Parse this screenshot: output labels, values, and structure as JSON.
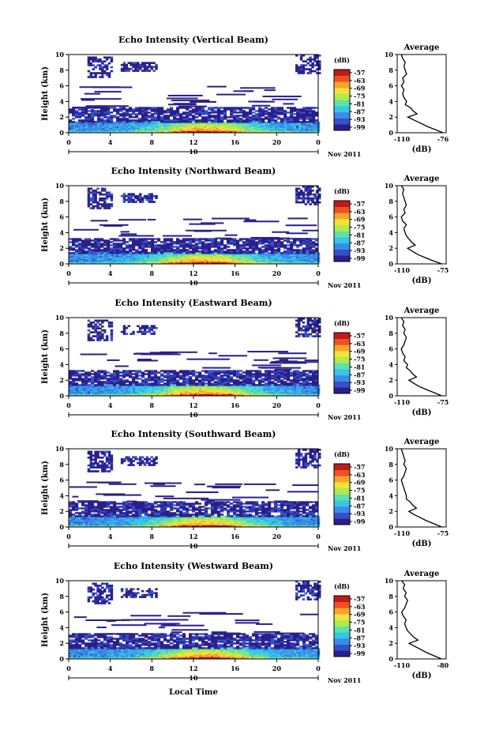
{
  "colors": {
    "scale": [
      "#2a1f8a",
      "#3550c8",
      "#3a8ce8",
      "#36c6e6",
      "#5fe0b0",
      "#b2ea4a",
      "#f2e23a",
      "#f8a42a",
      "#ee5222",
      "#c21a1a"
    ],
    "axis": "#000000"
  },
  "colorbar": {
    "unit": "(dB)",
    "ticks": [
      "-57",
      "-63",
      "-69",
      "-75",
      "-81",
      "-87",
      "-93",
      "-99"
    ]
  },
  "shared": {
    "x_ticks": [
      "0",
      "4",
      "8",
      "12",
      "16",
      "20",
      "0"
    ],
    "y_ticks": [
      "0",
      "2",
      "4",
      "6",
      "8",
      "10"
    ],
    "ylabel": "Height (km)",
    "date_day": "10",
    "date_month_year": "Nov 2011",
    "xlabel": "Local Time",
    "avg_title": "Average",
    "avg_xlabel": "(dB)"
  },
  "chart_data": [
    {
      "type": "heatmap",
      "title": "Echo Intensity (Vertical Beam)",
      "xlim": [
        0,
        24
      ],
      "ylim": [
        0,
        10
      ],
      "avg_ticks": [
        "-110",
        "-76"
      ],
      "avg_profile": {
        "height_km": [
          0,
          0.4,
          0.8,
          1.2,
          1.6,
          2,
          2.4,
          2.8,
          3.2,
          3.6,
          4,
          4.5,
          5,
          5.5,
          6,
          6.5,
          7,
          7.5,
          8,
          8.5,
          9,
          9.5,
          10
        ],
        "db": [
          -76,
          -82,
          -88,
          -93,
          -98,
          -103,
          -96,
          -99,
          -101,
          -105,
          -104,
          -106,
          -107,
          -106,
          -108,
          -106,
          -107,
          -104,
          -105,
          -106,
          -105,
          -107,
          -108
        ]
      }
    },
    {
      "type": "heatmap",
      "title": "Echo Intensity (Northward Beam)",
      "xlim": [
        0,
        24
      ],
      "ylim": [
        0,
        10
      ],
      "avg_ticks": [
        "-110",
        "-75"
      ],
      "avg_profile": {
        "height_km": [
          0,
          0.4,
          0.8,
          1.2,
          1.6,
          2,
          2.4,
          2.8,
          3.2,
          3.6,
          4,
          4.5,
          5,
          5.5,
          6,
          6.5,
          7,
          7.5,
          8,
          8.5,
          9,
          9.5,
          10
        ],
        "db": [
          -76,
          -83,
          -89,
          -95,
          -99,
          -103,
          -97,
          -100,
          -102,
          -104,
          -105,
          -106,
          -104,
          -107,
          -108,
          -105,
          -106,
          -104,
          -105,
          -106,
          -107,
          -106,
          -108
        ]
      }
    },
    {
      "type": "heatmap",
      "title": "Echo Intensity (Eastward Beam)",
      "xlim": [
        0,
        24
      ],
      "ylim": [
        0,
        10
      ],
      "avg_ticks": [
        "-110",
        "-75"
      ],
      "avg_profile": {
        "height_km": [
          0,
          0.4,
          0.8,
          1.2,
          1.6,
          2,
          2.4,
          2.8,
          3.2,
          3.6,
          4,
          4.5,
          5,
          5.5,
          6,
          6.5,
          7,
          7.5,
          8,
          8.5,
          9,
          9.5,
          10
        ],
        "db": [
          -76,
          -82,
          -88,
          -94,
          -98,
          -102,
          -96,
          -99,
          -101,
          -104,
          -103,
          -106,
          -105,
          -107,
          -108,
          -106,
          -105,
          -104,
          -106,
          -105,
          -107,
          -106,
          -108
        ]
      }
    },
    {
      "type": "heatmap",
      "title": "Echo Intensity (Southward Beam)",
      "xlim": [
        0,
        24
      ],
      "ylim": [
        0,
        10
      ],
      "avg_ticks": [
        "-110",
        "-75"
      ],
      "avg_profile": {
        "height_km": [
          0,
          0.4,
          0.8,
          1.2,
          1.6,
          2,
          2.4,
          2.8,
          3.2,
          3.6,
          4,
          4.5,
          5,
          5.5,
          6,
          6.5,
          7,
          7.5,
          8,
          8.5,
          9,
          9.5,
          10
        ],
        "db": [
          -76,
          -82,
          -88,
          -93,
          -98,
          -102,
          -96,
          -99,
          -101,
          -104,
          -104,
          -105,
          -106,
          -107,
          -108,
          -106,
          -105,
          -104,
          -106,
          -105,
          -106,
          -107,
          -108
        ]
      }
    },
    {
      "type": "heatmap",
      "title": "Echo Intensity (Westward Beam)",
      "xlim": [
        0,
        24
      ],
      "ylim": [
        0,
        10
      ],
      "avg_ticks": [
        "-110",
        "-80"
      ],
      "avg_profile": {
        "height_km": [
          0,
          0.4,
          0.8,
          1.2,
          1.6,
          2,
          2.4,
          2.8,
          3.2,
          3.6,
          4,
          4.5,
          5,
          5.5,
          6,
          6.5,
          7,
          7.5,
          8,
          8.5,
          9,
          9.5,
          10
        ],
        "db": [
          -81,
          -86,
          -91,
          -95,
          -99,
          -103,
          -97,
          -100,
          -102,
          -104,
          -105,
          -106,
          -105,
          -107,
          -108,
          -106,
          -105,
          -104,
          -106,
          -105,
          -107,
          -106,
          -108
        ]
      }
    }
  ]
}
